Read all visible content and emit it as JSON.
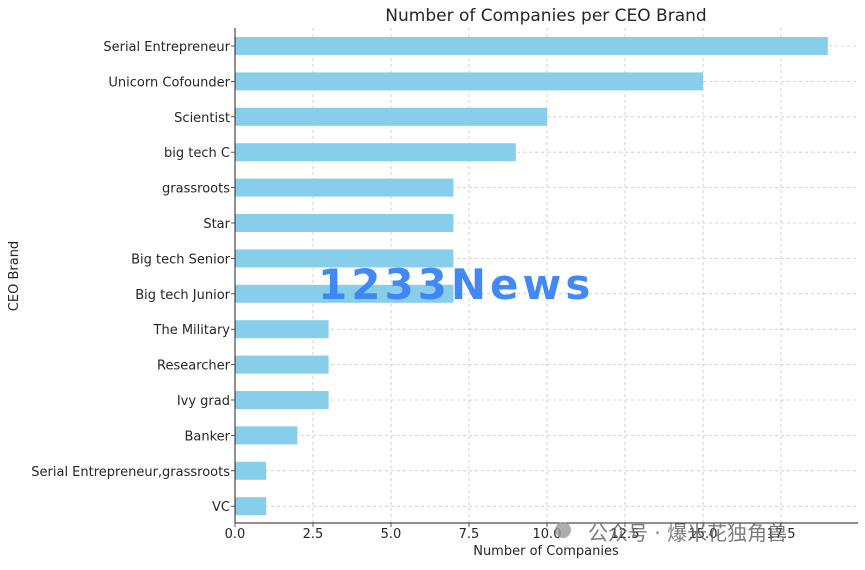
{
  "chart_data": {
    "type": "bar",
    "orientation": "horizontal",
    "title": "Number of Companies per CEO Brand",
    "xlabel": "Number of Companies",
    "ylabel": "CEO Brand",
    "categories": [
      "Serial Entrepreneur",
      "Unicorn Cofounder",
      "Scientist",
      "big tech C",
      "grassroots",
      "Star",
      "Big tech Senior",
      "Big tech Junior",
      "The Military",
      "Researcher",
      "Ivy grad",
      "Banker",
      "Serial Entrepreneur,grassroots",
      "VC"
    ],
    "values": [
      19,
      15,
      10,
      9,
      7,
      7,
      7,
      7,
      3,
      3,
      3,
      2,
      1,
      1
    ],
    "xticks": [
      "0.0",
      "2.5",
      "5.0",
      "7.5",
      "10.0",
      "12.5",
      "15.0",
      "17.5"
    ],
    "xlim": [
      0,
      20
    ],
    "grid": true,
    "bar_color": "#87ceeb"
  },
  "watermarks": {
    "logo_text": "1233News",
    "wechat_text": "公众号 · 爆米花独角兽",
    "logo_color": "#3b82f6"
  }
}
